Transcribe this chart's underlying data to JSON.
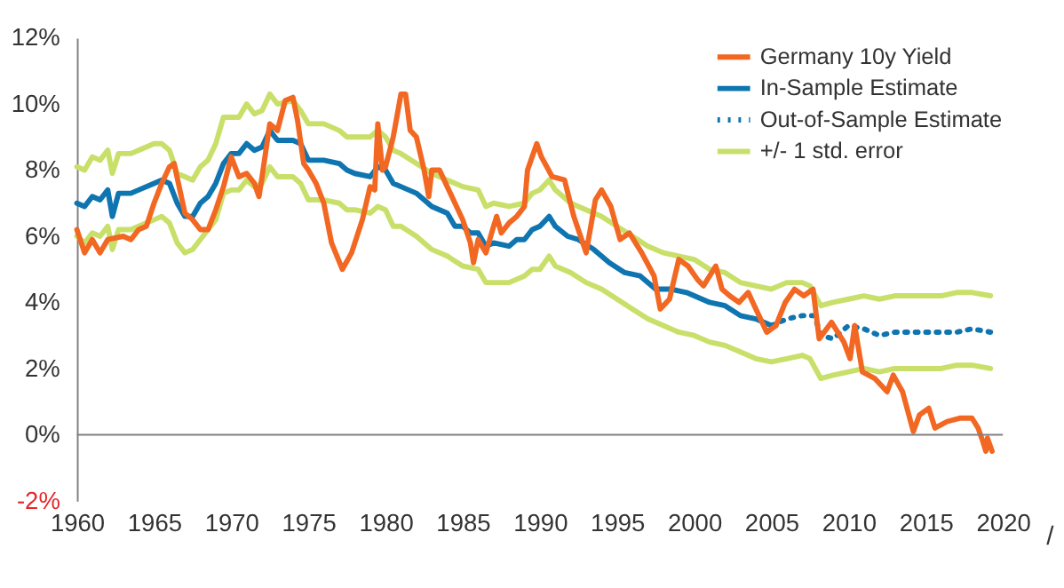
{
  "chart_data": {
    "type": "line",
    "xlim": [
      1960,
      2020
    ],
    "xticks": [
      1960,
      1965,
      1970,
      1975,
      1980,
      1985,
      1990,
      1995,
      2000,
      2005,
      2010,
      2015,
      2020
    ],
    "ylim": [
      -2,
      12
    ],
    "yticks": [
      {
        "value": -2,
        "label": "-2%"
      },
      {
        "value": 0,
        "label": "0%"
      },
      {
        "value": 2,
        "label": "2%"
      },
      {
        "value": 4,
        "label": "4%"
      },
      {
        "value": 6,
        "label": "6%"
      },
      {
        "value": 8,
        "label": "8%"
      },
      {
        "value": 10,
        "label": "10%"
      },
      {
        "value": 12,
        "label": "12%"
      }
    ],
    "grid": false,
    "legend": "top right",
    "marker": "none",
    "ref_lines": [
      {
        "axis": "y",
        "value": 0,
        "color": "#808080"
      }
    ],
    "annotations": [
      "/"
    ],
    "series": [
      {
        "name": "+/- 1 std. error",
        "color": "#c8e06a",
        "line_style": "solid",
        "x": [
          1960,
          1960.5,
          1961,
          1961.5,
          1962,
          1962.3,
          1962.7,
          1963.5,
          1964,
          1965,
          1965.5,
          1966,
          1966.5,
          1967,
          1967.5,
          1968,
          1968.5,
          1969,
          1969.5,
          1970,
          1970.5,
          1971,
          1971.5,
          1972,
          1972.5,
          1973,
          1974,
          1974.5,
          1975,
          1976,
          1977,
          1977.5,
          1978,
          1979,
          1979.5,
          1980,
          1980.5,
          1981,
          1982,
          1983,
          1984,
          1985,
          1986,
          1986.5,
          1987,
          1988,
          1989,
          1989.5,
          1990,
          1990.6,
          1991,
          1992,
          1993,
          1994,
          1995,
          1996,
          1997,
          1998,
          1999,
          2000,
          2001,
          2002,
          2003,
          2004,
          2005,
          2006,
          2007,
          2007.5,
          2008.2,
          2009,
          2010,
          2011,
          2012,
          2013,
          2014,
          2015,
          2016,
          2017,
          2018,
          2019.2
        ],
        "values": [
          8.1,
          8.0,
          8.4,
          8.3,
          8.6,
          7.9,
          8.5,
          8.5,
          8.6,
          8.8,
          8.8,
          8.6,
          7.9,
          7.8,
          7.7,
          8.1,
          8.3,
          8.8,
          9.6,
          9.6,
          9.6,
          10.0,
          9.7,
          9.8,
          10.3,
          10.0,
          10.1,
          9.8,
          9.4,
          9.4,
          9.2,
          9.0,
          9.0,
          9.0,
          9.2,
          9.0,
          8.6,
          8.5,
          8.2,
          7.9,
          7.7,
          7.5,
          7.4,
          6.9,
          7.0,
          6.9,
          7.0,
          7.3,
          7.4,
          7.7,
          7.4,
          7.0,
          6.8,
          6.6,
          6.3,
          6.0,
          5.7,
          5.5,
          5.4,
          5.3,
          5.0,
          4.9,
          4.6,
          4.5,
          4.4,
          4.6,
          4.6,
          4.5,
          3.9,
          4.0,
          4.1,
          4.2,
          4.1,
          4.2,
          4.2,
          4.2,
          4.2,
          4.3,
          4.3,
          4.2
        ]
      },
      {
        "color": "#c8e06a",
        "line_style": "solid",
        "x": [
          1960,
          1960.5,
          1961,
          1961.5,
          1962,
          1962.3,
          1962.7,
          1963.5,
          1964,
          1965,
          1965.5,
          1966,
          1966.5,
          1967,
          1967.5,
          1968,
          1968.5,
          1969,
          1969.5,
          1970,
          1970.5,
          1971,
          1971.5,
          1972,
          1972.5,
          1973,
          1974,
          1974.5,
          1975,
          1976,
          1977,
          1977.5,
          1978,
          1979,
          1979.5,
          1980,
          1980.5,
          1981,
          1982,
          1983,
          1984,
          1985,
          1986,
          1986.5,
          1987,
          1988,
          1989,
          1989.5,
          1990,
          1990.6,
          1991,
          1992,
          1993,
          1994,
          1995,
          1996,
          1997,
          1998,
          1999,
          2000,
          2001,
          2002,
          2003,
          2004,
          2005,
          2006,
          2007,
          2007.5,
          2008.2,
          2009,
          2010,
          2011,
          2012,
          2013,
          2014,
          2015,
          2016,
          2017,
          2018,
          2019.2
        ],
        "values": [
          6.0,
          5.8,
          6.1,
          6.0,
          6.3,
          5.6,
          6.2,
          6.2,
          6.3,
          6.5,
          6.6,
          6.4,
          5.8,
          5.5,
          5.6,
          5.9,
          6.2,
          6.5,
          7.3,
          7.4,
          7.4,
          7.7,
          7.5,
          7.6,
          8.1,
          7.8,
          7.8,
          7.6,
          7.1,
          7.1,
          7.0,
          6.8,
          6.8,
          6.7,
          6.9,
          6.8,
          6.3,
          6.3,
          6.0,
          5.6,
          5.4,
          5.1,
          5.0,
          4.6,
          4.6,
          4.6,
          4.8,
          5.0,
          5.0,
          5.4,
          5.1,
          4.9,
          4.6,
          4.4,
          4.1,
          3.8,
          3.5,
          3.3,
          3.1,
          3.0,
          2.8,
          2.7,
          2.5,
          2.3,
          2.2,
          2.3,
          2.4,
          2.3,
          1.7,
          1.8,
          1.9,
          2.0,
          1.9,
          2.0,
          2.0,
          2.0,
          2.0,
          2.1,
          2.1,
          2.0
        ]
      },
      {
        "name": "Out-of-Sample Estimate",
        "color": "#0f75b0",
        "line_style": "dotted",
        "x": [
          2005,
          2006,
          2007,
          2007.8,
          2008.2,
          2009,
          2010,
          2011,
          2012,
          2013,
          2014,
          2015,
          2016,
          2017,
          2018,
          2019.2
        ],
        "values": [
          3.3,
          3.5,
          3.6,
          3.6,
          3.0,
          2.9,
          3.3,
          3.2,
          3.0,
          3.1,
          3.1,
          3.1,
          3.1,
          3.1,
          3.2,
          3.1
        ]
      },
      {
        "name": "In-Sample Estimate",
        "color": "#0f75b0",
        "line_style": "solid",
        "x": [
          1960,
          1960.5,
          1961,
          1961.5,
          1962,
          1962.3,
          1962.7,
          1963.5,
          1964,
          1965,
          1965.5,
          1966,
          1966.5,
          1967,
          1967.5,
          1968,
          1968.5,
          1969,
          1969.5,
          1970,
          1970.5,
          1971,
          1971.5,
          1972,
          1972.5,
          1973,
          1974,
          1974.5,
          1975,
          1975.5,
          1976,
          1977,
          1977.5,
          1978,
          1979,
          1979.5,
          1980,
          1980.5,
          1981,
          1982,
          1983,
          1984,
          1984.5,
          1985,
          1985.5,
          1986,
          1986.5,
          1987,
          1988,
          1988.5,
          1989,
          1989.5,
          1990,
          1990.6,
          1991,
          1991.8,
          1992.5,
          1993.5,
          1994.5,
          1995.5,
          1996.5,
          1997.5,
          1998.5,
          1999.5,
          2000,
          2001,
          2002,
          2003,
          2004,
          2005
        ],
        "values": [
          7.0,
          6.9,
          7.2,
          7.1,
          7.4,
          6.6,
          7.3,
          7.3,
          7.4,
          7.6,
          7.7,
          7.6,
          7.0,
          6.6,
          6.6,
          7.0,
          7.2,
          7.6,
          8.2,
          8.5,
          8.5,
          8.8,
          8.6,
          8.7,
          9.2,
          8.9,
          8.9,
          8.8,
          8.3,
          8.3,
          8.3,
          8.2,
          8.0,
          7.9,
          7.8,
          8.1,
          8.0,
          7.6,
          7.5,
          7.3,
          6.9,
          6.7,
          6.3,
          6.3,
          6.1,
          6.1,
          5.7,
          5.8,
          5.7,
          5.9,
          5.9,
          6.2,
          6.3,
          6.6,
          6.3,
          6.0,
          5.9,
          5.6,
          5.2,
          4.9,
          4.8,
          4.4,
          4.4,
          4.3,
          4.2,
          4.0,
          3.9,
          3.6,
          3.5,
          3.3
        ]
      },
      {
        "name": "Germany 10y Yield",
        "color": "#f26722",
        "line_style": "solid",
        "x": [
          1960,
          1960.5,
          1961,
          1961.5,
          1962,
          1963,
          1963.5,
          1964,
          1964.5,
          1965,
          1965.5,
          1966,
          1966.3,
          1967,
          1967.5,
          1968,
          1968.5,
          1969,
          1969.5,
          1970,
          1970.5,
          1971,
          1971.5,
          1971.8,
          1972,
          1972.5,
          1973,
          1973.5,
          1974,
          1974.3,
          1974.7,
          1975,
          1975.5,
          1976,
          1976.5,
          1977.2,
          1977.8,
          1978.5,
          1979,
          1979.3,
          1979.5,
          1979.8,
          1980,
          1980.5,
          1981,
          1981.3,
          1981.6,
          1982,
          1982.5,
          1982.8,
          1983,
          1983.5,
          1984,
          1984.5,
          1985,
          1985.5,
          1985.7,
          1986,
          1986.5,
          1987,
          1987.2,
          1987.5,
          1988,
          1988.5,
          1989,
          1989.2,
          1989.8,
          1990.1,
          1990.8,
          1991.6,
          1992.2,
          1993.0,
          1993.6,
          1994.0,
          1994.6,
          1995.2,
          1995.8,
          1996.6,
          1997.4,
          1997.8,
          1998.4,
          1999.0,
          1999.6,
          2000.2,
          2000.6,
          2001.4,
          2001.8,
          2002.3,
          2002.9,
          2003.5,
          2003.9,
          2004.7,
          2005.3,
          2005.9,
          2006.5,
          2007.1,
          2007.7,
          2008.1,
          2008.9,
          2009.7,
          2010.1,
          2010.4,
          2010.9,
          2011.7,
          2012.5,
          2012.9,
          2013.5,
          2014.2,
          2014.6,
          2015.2,
          2015.6,
          2016.4,
          2017.2,
          2018.0,
          2018.4,
          2018.7,
          2018.9,
          2019.0,
          2019.3
        ],
        "values": [
          6.2,
          5.5,
          5.9,
          5.5,
          5.9,
          6.0,
          5.9,
          6.2,
          6.3,
          7.0,
          7.6,
          8.1,
          8.2,
          6.7,
          6.5,
          6.2,
          6.2,
          6.8,
          7.5,
          8.4,
          7.8,
          7.9,
          7.6,
          7.2,
          7.8,
          9.4,
          9.2,
          10.1,
          10.2,
          9.5,
          8.2,
          8.0,
          7.6,
          7.0,
          5.8,
          5.0,
          5.5,
          6.5,
          7.5,
          7.4,
          9.4,
          8.0,
          8.1,
          9.0,
          10.3,
          10.3,
          9.2,
          9.0,
          8.0,
          7.2,
          8.0,
          8.0,
          7.5,
          7.0,
          6.5,
          5.8,
          5.2,
          5.9,
          5.5,
          6.3,
          6.6,
          6.1,
          6.4,
          6.6,
          6.9,
          8.0,
          8.8,
          8.4,
          7.8,
          7.7,
          6.6,
          5.5,
          7.1,
          7.4,
          6.9,
          5.9,
          6.1,
          5.5,
          4.8,
          3.8,
          4.1,
          5.3,
          5.1,
          4.7,
          4.5,
          5.1,
          4.4,
          4.2,
          4.0,
          4.3,
          3.9,
          3.1,
          3.3,
          4.0,
          4.4,
          4.2,
          4.4,
          2.9,
          3.4,
          2.8,
          2.3,
          3.3,
          1.9,
          1.7,
          1.3,
          1.8,
          1.3,
          0.1,
          0.6,
          0.8,
          0.2,
          0.4,
          0.5,
          0.5,
          0.2,
          -0.2,
          -0.5,
          -0.1,
          -0.5
        ]
      }
    ]
  }
}
